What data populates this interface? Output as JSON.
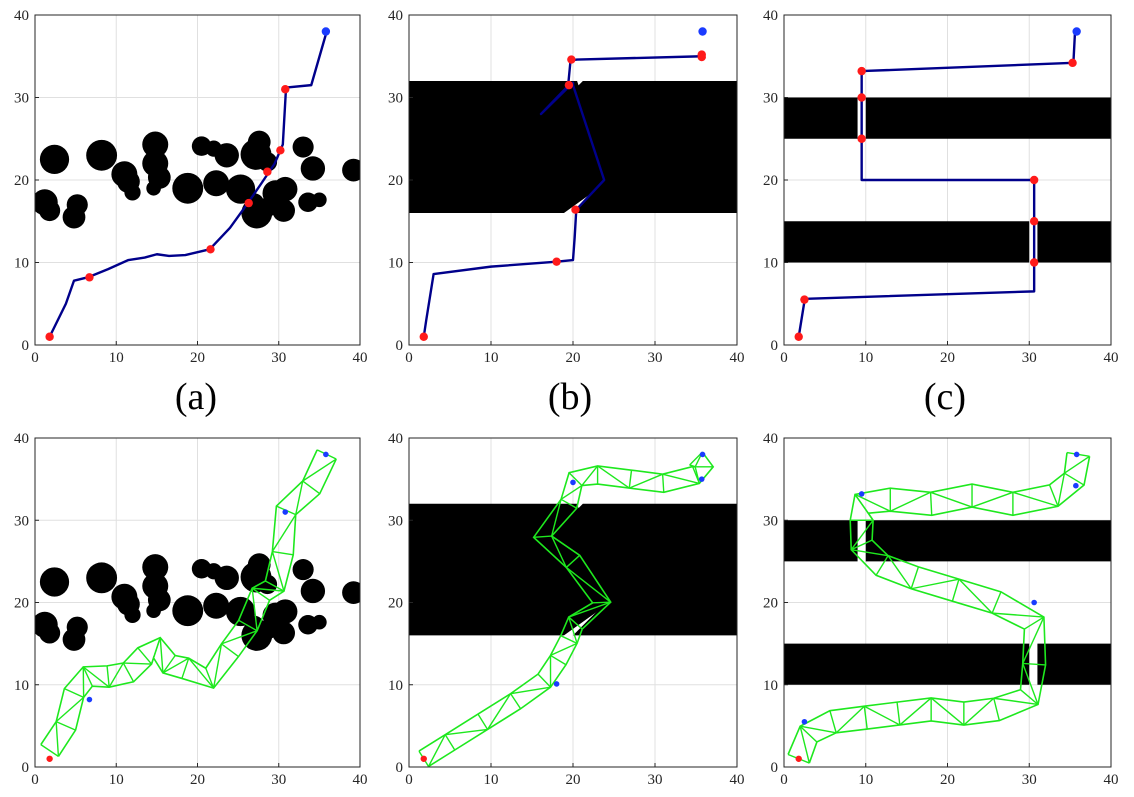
{
  "colors": {
    "obstacle": "#000000",
    "path": "#00008b",
    "waypoint": "#ff1a1a",
    "goal": "#1a3bff",
    "mesh": "#1ee81e",
    "grid": "#e0e0e0",
    "axis": "#262626"
  },
  "chart_data": [
    {
      "type": "scatter",
      "panel": "a",
      "caption": "(a)",
      "xlim": [
        0,
        40
      ],
      "ylim": [
        0,
        40
      ],
      "xticks": [
        "0",
        "10",
        "20",
        "30",
        "40"
      ],
      "yticks": [
        "0",
        "10",
        "20",
        "30",
        "40"
      ],
      "grid": true,
      "obstacles": [
        {
          "shape": "circle",
          "cx": 2.4,
          "cy": 22.5,
          "r": 1.8
        },
        {
          "shape": "circle",
          "cx": 1.2,
          "cy": 17.3,
          "r": 1.6
        },
        {
          "shape": "circle",
          "cx": 1.8,
          "cy": 16.3,
          "r": 1.3
        },
        {
          "shape": "circle",
          "cx": 5.2,
          "cy": 17.0,
          "r": 1.3
        },
        {
          "shape": "circle",
          "cx": 4.8,
          "cy": 15.5,
          "r": 1.4
        },
        {
          "shape": "circle",
          "cx": 8.2,
          "cy": 23.0,
          "r": 1.9
        },
        {
          "shape": "circle",
          "cx": 11.0,
          "cy": 20.7,
          "r": 1.6
        },
        {
          "shape": "circle",
          "cx": 11.5,
          "cy": 19.8,
          "r": 1.4
        },
        {
          "shape": "circle",
          "cx": 12.0,
          "cy": 18.5,
          "r": 1.0
        },
        {
          "shape": "circle",
          "cx": 14.8,
          "cy": 24.3,
          "r": 1.6
        },
        {
          "shape": "circle",
          "cx": 14.8,
          "cy": 22.0,
          "r": 1.6
        },
        {
          "shape": "circle",
          "cx": 15.3,
          "cy": 20.3,
          "r": 1.4
        },
        {
          "shape": "circle",
          "cx": 14.6,
          "cy": 19.0,
          "r": 0.9
        },
        {
          "shape": "circle",
          "cx": 18.8,
          "cy": 19.0,
          "r": 1.9
        },
        {
          "shape": "circle",
          "cx": 20.5,
          "cy": 24.1,
          "r": 1.2
        },
        {
          "shape": "circle",
          "cx": 22.0,
          "cy": 23.8,
          "r": 1.0
        },
        {
          "shape": "circle",
          "cx": 22.3,
          "cy": 19.6,
          "r": 1.6
        },
        {
          "shape": "circle",
          "cx": 23.6,
          "cy": 23.0,
          "r": 1.5
        },
        {
          "shape": "circle",
          "cx": 25.3,
          "cy": 18.9,
          "r": 1.8
        },
        {
          "shape": "circle",
          "cx": 27.6,
          "cy": 24.6,
          "r": 1.4
        },
        {
          "shape": "circle",
          "cx": 27.2,
          "cy": 23.1,
          "r": 1.9
        },
        {
          "shape": "circle",
          "cx": 28.6,
          "cy": 22.2,
          "r": 1.2
        },
        {
          "shape": "circle",
          "cx": 29.6,
          "cy": 18.4,
          "r": 1.6
        },
        {
          "shape": "circle",
          "cx": 27.0,
          "cy": 17.2,
          "r": 1.2
        },
        {
          "shape": "circle",
          "cx": 27.3,
          "cy": 16.0,
          "r": 1.9
        },
        {
          "shape": "circle",
          "cx": 28.8,
          "cy": 16.8,
          "r": 1.2
        },
        {
          "shape": "circle",
          "cx": 30.8,
          "cy": 18.9,
          "r": 1.5
        },
        {
          "shape": "circle",
          "cx": 30.6,
          "cy": 16.3,
          "r": 1.4
        },
        {
          "shape": "circle",
          "cx": 33.0,
          "cy": 24.0,
          "r": 1.3
        },
        {
          "shape": "circle",
          "cx": 34.2,
          "cy": 21.4,
          "r": 1.5
        },
        {
          "shape": "circle",
          "cx": 33.6,
          "cy": 17.3,
          "r": 1.2
        },
        {
          "shape": "circle",
          "cx": 35.0,
          "cy": 17.6,
          "r": 0.9
        },
        {
          "shape": "circle",
          "cx": 39.2,
          "cy": 21.2,
          "r": 1.4
        }
      ],
      "path": {
        "x": [
          1.8,
          3.8,
          4.8,
          6.5,
          9.0,
          11.5,
          13.5,
          15.0,
          16.5,
          18.5,
          21.5,
          24.0,
          26.2,
          27.8,
          29.5,
          30.5,
          30.9,
          34.0,
          35.9
        ],
        "y": [
          1.0,
          5.0,
          7.8,
          8.2,
          9.2,
          10.3,
          10.6,
          11.0,
          10.8,
          10.9,
          11.6,
          14.2,
          17.2,
          19.5,
          22.0,
          24.3,
          31.2,
          31.5,
          38.0
        ]
      },
      "waypoints": {
        "x": [
          1.8,
          6.7,
          21.6,
          26.3,
          28.6,
          30.2,
          30.8
        ],
        "y": [
          1.0,
          8.2,
          11.6,
          17.2,
          21.0,
          23.6,
          31.0
        ]
      },
      "goals": {
        "x": [
          35.8
        ],
        "y": [
          38.0
        ]
      }
    },
    {
      "type": "scatter",
      "panel": "b",
      "caption": "(b)",
      "xlim": [
        0,
        40
      ],
      "ylim": [
        0,
        40
      ],
      "xticks": [
        "0",
        "10",
        "20",
        "30",
        "40"
      ],
      "yticks": [
        "0",
        "10",
        "20",
        "30",
        "40"
      ],
      "grid": true,
      "obstacles": [
        {
          "shape": "polygon",
          "points": [
            [
              0,
              16
            ],
            [
              18.9,
              16
            ],
            [
              24.5,
              20
            ],
            [
              20.5,
              32
            ],
            [
              0,
              32
            ]
          ]
        },
        {
          "shape": "polygon",
          "points": [
            [
              20.0,
              16
            ],
            [
              40,
              16
            ],
            [
              40,
              32
            ],
            [
              21.2,
              32
            ],
            [
              17.2,
              28
            ],
            [
              24.0,
              20
            ]
          ]
        }
      ],
      "path": {
        "x": [
          1.8,
          2.1,
          3.0,
          10.0,
          18.0,
          20.0,
          20.2,
          20.4,
          23.8,
          20.0,
          20.0,
          16.1,
          19.4,
          19.7,
          20.5,
          35.8,
          35.8
        ],
        "y": [
          1.0,
          3.0,
          8.6,
          9.5,
          10.1,
          10.3,
          13.0,
          16.4,
          20.0,
          31.5,
          31.8,
          28.0,
          31.4,
          34.5,
          34.6,
          35.0,
          35.3
        ]
      },
      "waypoints": {
        "x": [
          1.8,
          18.0,
          20.3,
          19.5,
          19.8,
          35.7,
          35.7
        ],
        "y": [
          1.0,
          10.1,
          16.4,
          31.5,
          34.6,
          34.9,
          35.2
        ]
      },
      "goals": {
        "x": [
          35.8
        ],
        "y": [
          38.0
        ]
      }
    },
    {
      "type": "scatter",
      "panel": "c",
      "caption": "(c)",
      "xlim": [
        0,
        40
      ],
      "ylim": [
        0,
        40
      ],
      "xticks": [
        "0",
        "10",
        "20",
        "30",
        "40"
      ],
      "yticks": [
        "0",
        "10",
        "20",
        "30",
        "40"
      ],
      "grid": true,
      "obstacles": [
        {
          "shape": "rect",
          "x0": 0,
          "y0": 25,
          "x1": 9.0,
          "y1": 30
        },
        {
          "shape": "rect",
          "x0": 10.0,
          "y0": 25,
          "x1": 40,
          "y1": 30
        },
        {
          "shape": "rect",
          "x0": 0,
          "y0": 10,
          "x1": 30.0,
          "y1": 15
        },
        {
          "shape": "rect",
          "x0": 31.0,
          "y0": 10,
          "x1": 40,
          "y1": 15
        }
      ],
      "path": {
        "x": [
          1.8,
          2.5,
          2.7,
          30.6,
          30.6,
          30.6,
          30.6,
          30.6,
          9.5,
          9.5,
          9.5,
          9.5,
          9.5,
          35.4,
          35.6
        ],
        "y": [
          1.0,
          5.3,
          5.6,
          6.5,
          10.0,
          15.0,
          20.0,
          20.0,
          20.0,
          25.0,
          30.0,
          33.2,
          33.2,
          34.2,
          38.0
        ]
      },
      "waypoints": {
        "x": [
          1.8,
          2.5,
          30.6,
          30.6,
          30.6,
          9.5,
          9.5,
          9.5,
          35.3
        ],
        "y": [
          1.0,
          5.5,
          10.0,
          15.0,
          20.0,
          25.0,
          30.0,
          33.2,
          34.2
        ]
      },
      "goals": {
        "x": [
          35.8
        ],
        "y": [
          38.0
        ]
      }
    },
    {
      "type": "scatter",
      "panel": "a-mesh",
      "caption": "",
      "xlim": [
        0,
        40
      ],
      "ylim": [
        0,
        40
      ],
      "xticks": [
        "0",
        "10",
        "20",
        "30",
        "40"
      ],
      "yticks": [
        "0",
        "10",
        "20",
        "30",
        "40"
      ],
      "grid": true,
      "obstacles_ref": 0,
      "truss": {
        "halfwidth": 1.3,
        "x": [
          1.8,
          3.8,
          4.8,
          6.5,
          9.0,
          11.5,
          13.5,
          15.0,
          16.5,
          18.5,
          21.5,
          24.0,
          26.2,
          27.8,
          29.5,
          30.5,
          30.9,
          34.0,
          35.9
        ],
        "y": [
          2.0,
          5.0,
          9.0,
          11.0,
          11.0,
          11.5,
          13.5,
          14.5,
          12.5,
          12.0,
          10.8,
          14.2,
          17.2,
          21.0,
          22.0,
          26.0,
          31.2,
          34.0,
          38.0
        ]
      },
      "start_marker": {
        "x": [
          1.8
        ],
        "y": [
          1.0
        ]
      },
      "goals": {
        "x": [
          6.7,
          30.8,
          35.8
        ],
        "y": [
          8.2,
          31.0,
          38.0
        ]
      }
    },
    {
      "type": "scatter",
      "panel": "b-mesh",
      "caption": "",
      "xlim": [
        0,
        40
      ],
      "ylim": [
        0,
        40
      ],
      "xticks": [
        "0",
        "10",
        "20",
        "30",
        "40"
      ],
      "yticks": [
        "0",
        "10",
        "20",
        "30",
        "40"
      ],
      "grid": true,
      "obstacles_ref": 1,
      "truss": {
        "halfwidth": 1.1,
        "x": [
          1.8,
          5.0,
          9.0,
          13.0,
          16.5,
          18.2,
          19.5,
          20.3,
          23.5,
          20.0,
          16.3,
          19.5,
          20.3,
          23.0,
          27.0,
          31.0,
          35.0,
          36.0,
          35.0
        ],
        "y": [
          1.0,
          3.0,
          5.5,
          8.0,
          10.5,
          13.0,
          15.5,
          17.5,
          20.0,
          25.0,
          28.0,
          32.0,
          35.0,
          35.5,
          35.0,
          34.5,
          35.5,
          36.5,
          37.5
        ]
      },
      "start_marker": {
        "x": [
          1.8
        ],
        "y": [
          1.0
        ]
      },
      "goals": {
        "x": [
          18.0,
          20.0,
          35.8,
          35.7
        ],
        "y": [
          10.1,
          34.6,
          38.0,
          35.0
        ]
      }
    },
    {
      "type": "scatter",
      "panel": "c-mesh",
      "caption": "",
      "xlim": [
        0,
        40
      ],
      "ylim": [
        0,
        40
      ],
      "xticks": [
        "0",
        "10",
        "20",
        "30",
        "40"
      ],
      "yticks": [
        "0",
        "10",
        "20",
        "30",
        "40"
      ],
      "grid": true,
      "obstacles_ref": 2,
      "truss": {
        "halfwidth": 1.4,
        "x": [
          1.8,
          3.0,
          6.0,
          10.0,
          14.0,
          18.0,
          22.0,
          26.0,
          30.0,
          30.6,
          30.6,
          26.0,
          21.0,
          16.0,
          12.0,
          9.5,
          9.5,
          9.5,
          13.0,
          18.0,
          23.0,
          28.0,
          33.0,
          35.5,
          36.0
        ],
        "y": [
          1.0,
          4.0,
          5.5,
          6.0,
          6.5,
          7.0,
          6.5,
          7.0,
          8.5,
          12.5,
          17.5,
          20.0,
          21.5,
          23.0,
          24.5,
          27.0,
          30.0,
          32.0,
          32.5,
          32.0,
          33.0,
          32.0,
          33.0,
          35.0,
          38.0
        ]
      },
      "start_marker": {
        "x": [
          1.8
        ],
        "y": [
          1.0
        ]
      },
      "goals": {
        "x": [
          2.5,
          9.5,
          30.6,
          35.7,
          35.8
        ],
        "y": [
          5.5,
          33.2,
          20.0,
          34.2,
          38.0
        ]
      }
    }
  ]
}
